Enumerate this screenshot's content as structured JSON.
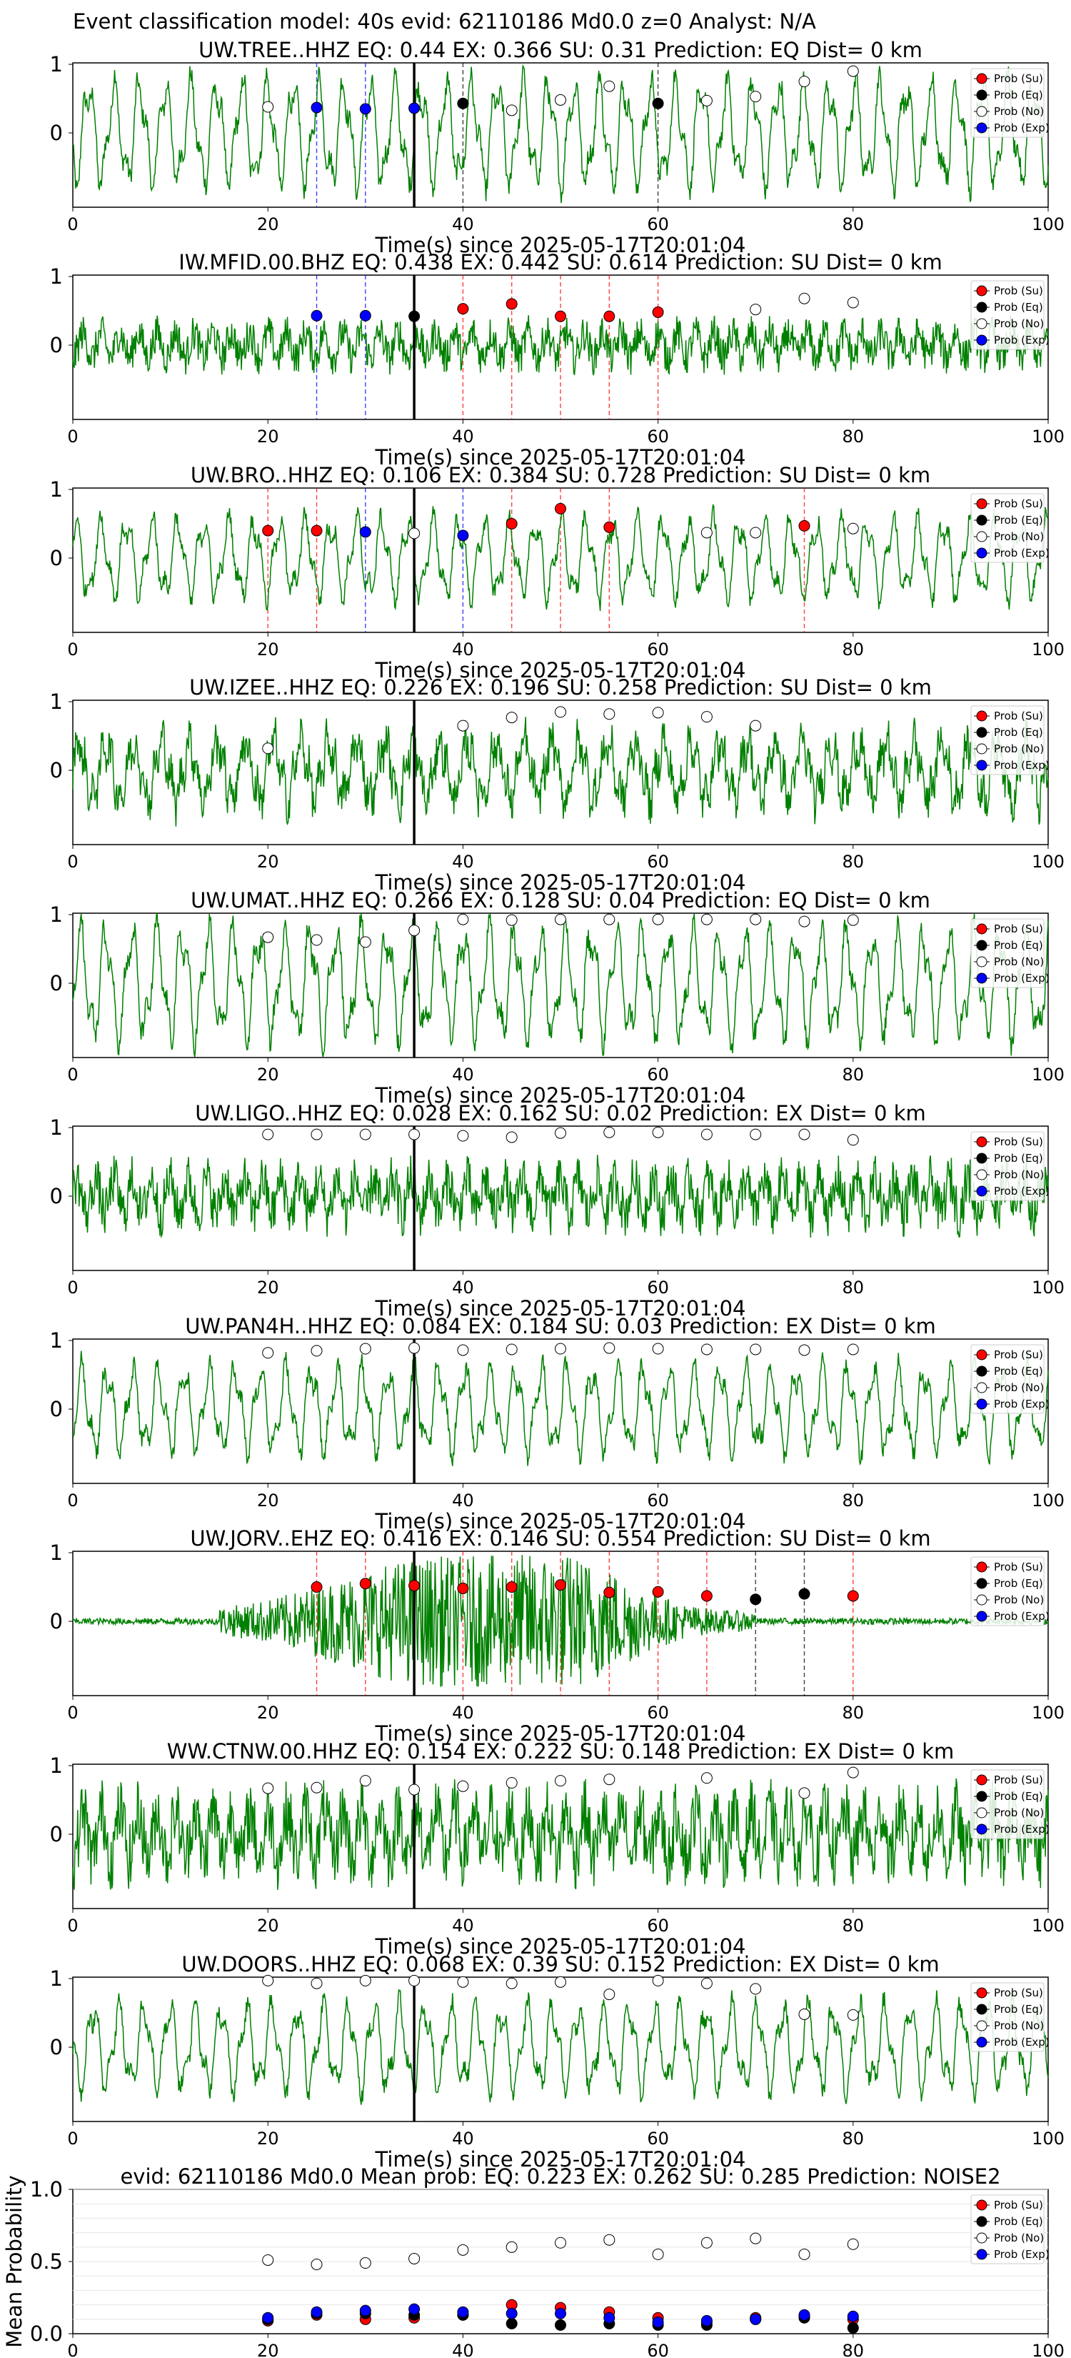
{
  "figure_title": "Event classification model: 40s evid: 62110186 Md0.0 z=0 Analyst: N/A",
  "legend_labels": [
    "Prob (Su)",
    "Prob (Eq)",
    "Prob (No)",
    "Prob (Exp)"
  ],
  "colors": {
    "waveform": "#008000",
    "su": "#ff0000",
    "eq": "#000000",
    "no": "#ffffff",
    "exp": "#0000ff",
    "arrival": "#000000"
  },
  "chart_data": [
    {
      "type": "line",
      "station": "UW.TREE..HHZ",
      "title": "UW.TREE..HHZ   EQ: 0.44  EX: 0.366  SU: 0.31   Prediction: EQ    Dist= 0 km",
      "xlabel": "Time(s) since 2025-05-17T20:01:04",
      "xlim": [
        0,
        100
      ],
      "yticks": [
        "0",
        "1"
      ],
      "xticks": [
        "0",
        "20",
        "40",
        "60",
        "80",
        "100"
      ],
      "arrival": 35,
      "waveform": {
        "style": "osc",
        "amp": 0.85
      },
      "points": [
        [
          20,
          "no",
          0.38
        ],
        [
          25,
          "exp",
          0.37
        ],
        [
          30,
          "exp",
          0.35
        ],
        [
          35,
          "exp",
          0.36
        ],
        [
          40,
          "eq",
          0.43
        ],
        [
          45,
          "no",
          0.33
        ],
        [
          50,
          "no",
          0.48
        ],
        [
          55,
          "no",
          0.68
        ],
        [
          60,
          "eq",
          0.43
        ],
        [
          65,
          "no",
          0.47
        ],
        [
          70,
          "no",
          0.53
        ],
        [
          75,
          "no",
          0.75
        ],
        [
          80,
          "no",
          0.9
        ]
      ]
    },
    {
      "type": "line",
      "station": "IW.MFID.00.BHZ",
      "title": "IW.MFID.00.BHZ   EQ: 0.438  EX: 0.442  SU: 0.614   Prediction: SU    Dist= 0 km",
      "xlabel": "Time(s) since 2025-05-17T20:01:04",
      "xlim": [
        0,
        100
      ],
      "yticks": [
        "0",
        "1"
      ],
      "xticks": [
        "0",
        "20",
        "40",
        "60",
        "80",
        "100"
      ],
      "arrival": 35,
      "waveform": {
        "style": "noise",
        "amp": 0.4
      },
      "points": [
        [
          25,
          "exp",
          0.43
        ],
        [
          30,
          "exp",
          0.43
        ],
        [
          35,
          "eq",
          0.42
        ],
        [
          40,
          "su",
          0.53
        ],
        [
          45,
          "su",
          0.6
        ],
        [
          50,
          "su",
          0.42
        ],
        [
          55,
          "su",
          0.42
        ],
        [
          60,
          "su",
          0.48
        ],
        [
          70,
          "no",
          0.52
        ],
        [
          75,
          "no",
          0.68
        ],
        [
          80,
          "no",
          0.62
        ]
      ]
    },
    {
      "type": "line",
      "station": "UW.BRO..HHZ",
      "title": "UW.BRO..HHZ   EQ: 0.106  EX: 0.384  SU: 0.728   Prediction: SU    Dist= 0 km",
      "xlabel": "Time(s) since 2025-05-17T20:01:04",
      "xlim": [
        0,
        100
      ],
      "yticks": [
        "0",
        "1"
      ],
      "xticks": [
        "0",
        "20",
        "40",
        "60",
        "80",
        "100"
      ],
      "arrival": 35,
      "waveform": {
        "style": "osc",
        "amp": 0.65
      },
      "points": [
        [
          20,
          "su",
          0.4
        ],
        [
          25,
          "su",
          0.4
        ],
        [
          30,
          "exp",
          0.38
        ],
        [
          35,
          "no",
          0.36
        ],
        [
          40,
          "exp",
          0.33
        ],
        [
          45,
          "su",
          0.5
        ],
        [
          50,
          "su",
          0.72
        ],
        [
          55,
          "su",
          0.45
        ],
        [
          65,
          "no",
          0.37
        ],
        [
          70,
          "no",
          0.37
        ],
        [
          75,
          "su",
          0.47
        ],
        [
          80,
          "no",
          0.43
        ]
      ]
    },
    {
      "type": "line",
      "station": "UW.IZEE..HHZ",
      "title": "UW.IZEE..HHZ   EQ: 0.226  EX: 0.196  SU: 0.258   Prediction: SU    Dist= 0 km",
      "xlabel": "Time(s) since 2025-05-17T20:01:04",
      "xlim": [
        0,
        100
      ],
      "yticks": [
        "0",
        "1"
      ],
      "xticks": [
        "0",
        "20",
        "40",
        "60",
        "80",
        "100"
      ],
      "arrival": 35,
      "waveform": {
        "style": "mixed",
        "amp": 0.7
      },
      "points": [
        [
          20,
          "no",
          0.32
        ],
        [
          40,
          "no",
          0.65
        ],
        [
          45,
          "no",
          0.77
        ],
        [
          50,
          "no",
          0.85
        ],
        [
          55,
          "no",
          0.82
        ],
        [
          60,
          "no",
          0.84
        ],
        [
          65,
          "no",
          0.78
        ],
        [
          70,
          "no",
          0.65
        ]
      ]
    },
    {
      "type": "line",
      "station": "UW.UMAT..HHZ",
      "title": "UW.UMAT..HHZ   EQ: 0.266  EX: 0.128  SU: 0.04   Prediction: EQ    Dist= 0 km",
      "xlabel": "Time(s) since 2025-05-17T20:01:04",
      "xlim": [
        0,
        100
      ],
      "yticks": [
        "0",
        "1"
      ],
      "xticks": [
        "0",
        "20",
        "40",
        "60",
        "80",
        "100"
      ],
      "arrival": 35,
      "waveform": {
        "style": "osc",
        "amp": 0.9
      },
      "points": [
        [
          20,
          "no",
          0.67
        ],
        [
          25,
          "no",
          0.63
        ],
        [
          30,
          "no",
          0.6
        ],
        [
          35,
          "no",
          0.77
        ],
        [
          40,
          "no",
          0.93
        ],
        [
          45,
          "no",
          0.92
        ],
        [
          50,
          "no",
          0.93
        ],
        [
          55,
          "no",
          0.93
        ],
        [
          60,
          "no",
          0.93
        ],
        [
          65,
          "no",
          0.93
        ],
        [
          70,
          "no",
          0.93
        ],
        [
          75,
          "no",
          0.9
        ],
        [
          80,
          "no",
          0.92
        ]
      ]
    },
    {
      "type": "line",
      "station": "UW.LIGO..HHZ",
      "title": "UW.LIGO..HHZ   EQ: 0.028  EX: 0.162  SU: 0.02   Prediction: EX    Dist= 0 km",
      "xlabel": "Time(s) since 2025-05-17T20:01:04",
      "xlim": [
        0,
        100
      ],
      "yticks": [
        "0",
        "1"
      ],
      "xticks": [
        "0",
        "20",
        "40",
        "60",
        "80",
        "100"
      ],
      "arrival": 35,
      "waveform": {
        "style": "noise",
        "amp": 0.55
      },
      "points": [
        [
          20,
          "no",
          0.9
        ],
        [
          25,
          "no",
          0.9
        ],
        [
          30,
          "no",
          0.9
        ],
        [
          35,
          "no",
          0.9
        ],
        [
          40,
          "no",
          0.88
        ],
        [
          45,
          "no",
          0.86
        ],
        [
          50,
          "no",
          0.92
        ],
        [
          55,
          "no",
          0.93
        ],
        [
          60,
          "no",
          0.93
        ],
        [
          65,
          "no",
          0.9
        ],
        [
          70,
          "no",
          0.9
        ],
        [
          75,
          "no",
          0.9
        ],
        [
          80,
          "no",
          0.82
        ]
      ]
    },
    {
      "type": "line",
      "station": "UW.PAN4H..HHZ",
      "title": "UW.PAN4H..HHZ   EQ: 0.084  EX: 0.184  SU: 0.03   Prediction: EX    Dist= 0 km",
      "xlabel": "Time(s) since 2025-05-17T20:01:04",
      "xlim": [
        0,
        100
      ],
      "yticks": [
        "0",
        "1"
      ],
      "xticks": [
        "0",
        "20",
        "40",
        "60",
        "80",
        "100"
      ],
      "arrival": 35,
      "waveform": {
        "style": "osc",
        "amp": 0.7
      },
      "points": [
        [
          20,
          "no",
          0.82
        ],
        [
          25,
          "no",
          0.85
        ],
        [
          30,
          "no",
          0.88
        ],
        [
          35,
          "no",
          0.89
        ],
        [
          40,
          "no",
          0.86
        ],
        [
          45,
          "no",
          0.87
        ],
        [
          50,
          "no",
          0.88
        ],
        [
          55,
          "no",
          0.89
        ],
        [
          60,
          "no",
          0.88
        ],
        [
          65,
          "no",
          0.87
        ],
        [
          70,
          "no",
          0.87
        ],
        [
          75,
          "no",
          0.86
        ],
        [
          80,
          "no",
          0.87
        ]
      ]
    },
    {
      "type": "line",
      "station": "UW.JORV..EHZ",
      "title": "UW.JORV..EHZ   EQ: 0.416  EX: 0.146  SU: 0.554   Prediction: SU    Dist= 0 km",
      "xlabel": "Time(s) since 2025-05-17T20:01:04",
      "xlim": [
        0,
        100
      ],
      "yticks": [
        "0",
        "1"
      ],
      "xticks": [
        "0",
        "20",
        "40",
        "60",
        "80",
        "100"
      ],
      "arrival": 35,
      "waveform": {
        "style": "burst",
        "amp": 0.85
      },
      "points": [
        [
          25,
          "su",
          0.5
        ],
        [
          30,
          "su",
          0.55
        ],
        [
          35,
          "su",
          0.52
        ],
        [
          40,
          "su",
          0.48
        ],
        [
          45,
          "su",
          0.5
        ],
        [
          50,
          "su",
          0.53
        ],
        [
          55,
          "su",
          0.42
        ],
        [
          60,
          "su",
          0.43
        ],
        [
          65,
          "su",
          0.37
        ],
        [
          70,
          "eq",
          0.32
        ],
        [
          75,
          "eq",
          0.4
        ],
        [
          80,
          "su",
          0.37
        ]
      ]
    },
    {
      "type": "line",
      "station": "WW.CTNW.00.HHZ",
      "title": "WW.CTNW.00.HHZ   EQ: 0.154  EX: 0.222  SU: 0.148   Prediction: EX    Dist= 0 km",
      "xlabel": "Time(s) since 2025-05-17T20:01:04",
      "xlim": [
        0,
        100
      ],
      "yticks": [
        "0",
        "1"
      ],
      "xticks": [
        "0",
        "20",
        "40",
        "60",
        "80",
        "100"
      ],
      "arrival": 35,
      "waveform": {
        "style": "noise",
        "amp": 0.75
      },
      "points": [
        [
          20,
          "no",
          0.67
        ],
        [
          25,
          "no",
          0.68
        ],
        [
          30,
          "no",
          0.78
        ],
        [
          35,
          "no",
          0.65
        ],
        [
          40,
          "no",
          0.7
        ],
        [
          45,
          "no",
          0.75
        ],
        [
          50,
          "no",
          0.78
        ],
        [
          55,
          "no",
          0.8
        ],
        [
          65,
          "no",
          0.82
        ],
        [
          75,
          "no",
          0.6
        ],
        [
          80,
          "no",
          0.9
        ]
      ]
    },
    {
      "type": "line",
      "station": "UW.DOORS..HHZ",
      "title": "UW.DOORS..HHZ   EQ: 0.068  EX: 0.39  SU: 0.152   Prediction: EX    Dist= 0 km",
      "xlabel": "Time(s) since 2025-05-17T20:01:04",
      "xlim": [
        0,
        100
      ],
      "yticks": [
        "0",
        "1"
      ],
      "xticks": [
        "0",
        "20",
        "40",
        "60",
        "80",
        "100"
      ],
      "arrival": 35,
      "waveform": {
        "style": "osc",
        "amp": 0.7
      },
      "points": [
        [
          20,
          "no",
          0.97
        ],
        [
          25,
          "no",
          0.93
        ],
        [
          30,
          "no",
          0.97
        ],
        [
          35,
          "no",
          0.97
        ],
        [
          40,
          "no",
          0.95
        ],
        [
          45,
          "no",
          0.93
        ],
        [
          50,
          "no",
          0.95
        ],
        [
          55,
          "no",
          0.77
        ],
        [
          60,
          "no",
          0.97
        ],
        [
          65,
          "no",
          0.93
        ],
        [
          70,
          "no",
          0.85
        ],
        [
          75,
          "no",
          0.48
        ],
        [
          80,
          "no",
          0.47
        ]
      ]
    },
    {
      "type": "scatter",
      "station": "Mean",
      "title": "evid: 62110186  Md0.0   Mean prob:   EQ: 0.223  EX: 0.262  SU: 0.285   Prediction: NOISE2",
      "ylabel": "Mean Probability",
      "xlim": [
        0,
        100
      ],
      "ylim": [
        0,
        1
      ],
      "yticks": [
        "0.0",
        "0.5",
        "1.0"
      ],
      "xticks": [
        "0",
        "20",
        "40",
        "60",
        "80",
        "100"
      ],
      "series": [
        {
          "name": "Prob (Su)",
          "kind": "su",
          "x": [
            20,
            25,
            30,
            35,
            40,
            45,
            50,
            55,
            60,
            65,
            70,
            75,
            80
          ],
          "values": [
            0.09,
            0.13,
            0.1,
            0.11,
            0.13,
            0.2,
            0.18,
            0.15,
            0.11,
            0.08,
            0.11,
            0.12,
            0.1
          ]
        },
        {
          "name": "Prob (Eq)",
          "kind": "eq",
          "x": [
            20,
            25,
            30,
            35,
            40,
            45,
            50,
            55,
            60,
            65,
            70,
            75,
            80
          ],
          "values": [
            0.1,
            0.14,
            0.14,
            0.13,
            0.13,
            0.07,
            0.06,
            0.07,
            0.06,
            0.06,
            0.1,
            0.11,
            0.04
          ]
        },
        {
          "name": "Prob (No)",
          "kind": "no",
          "x": [
            20,
            25,
            30,
            35,
            40,
            45,
            50,
            55,
            60,
            65,
            70,
            75,
            80
          ],
          "values": [
            0.51,
            0.48,
            0.49,
            0.52,
            0.58,
            0.6,
            0.63,
            0.65,
            0.55,
            0.63,
            0.66,
            0.55,
            0.62
          ]
        },
        {
          "name": "Prob (Exp)",
          "kind": "exp",
          "x": [
            20,
            25,
            30,
            35,
            40,
            45,
            50,
            55,
            60,
            65,
            70,
            75,
            80
          ],
          "values": [
            0.11,
            0.15,
            0.16,
            0.17,
            0.15,
            0.14,
            0.14,
            0.11,
            0.08,
            0.09,
            0.1,
            0.13,
            0.12
          ]
        }
      ]
    }
  ]
}
